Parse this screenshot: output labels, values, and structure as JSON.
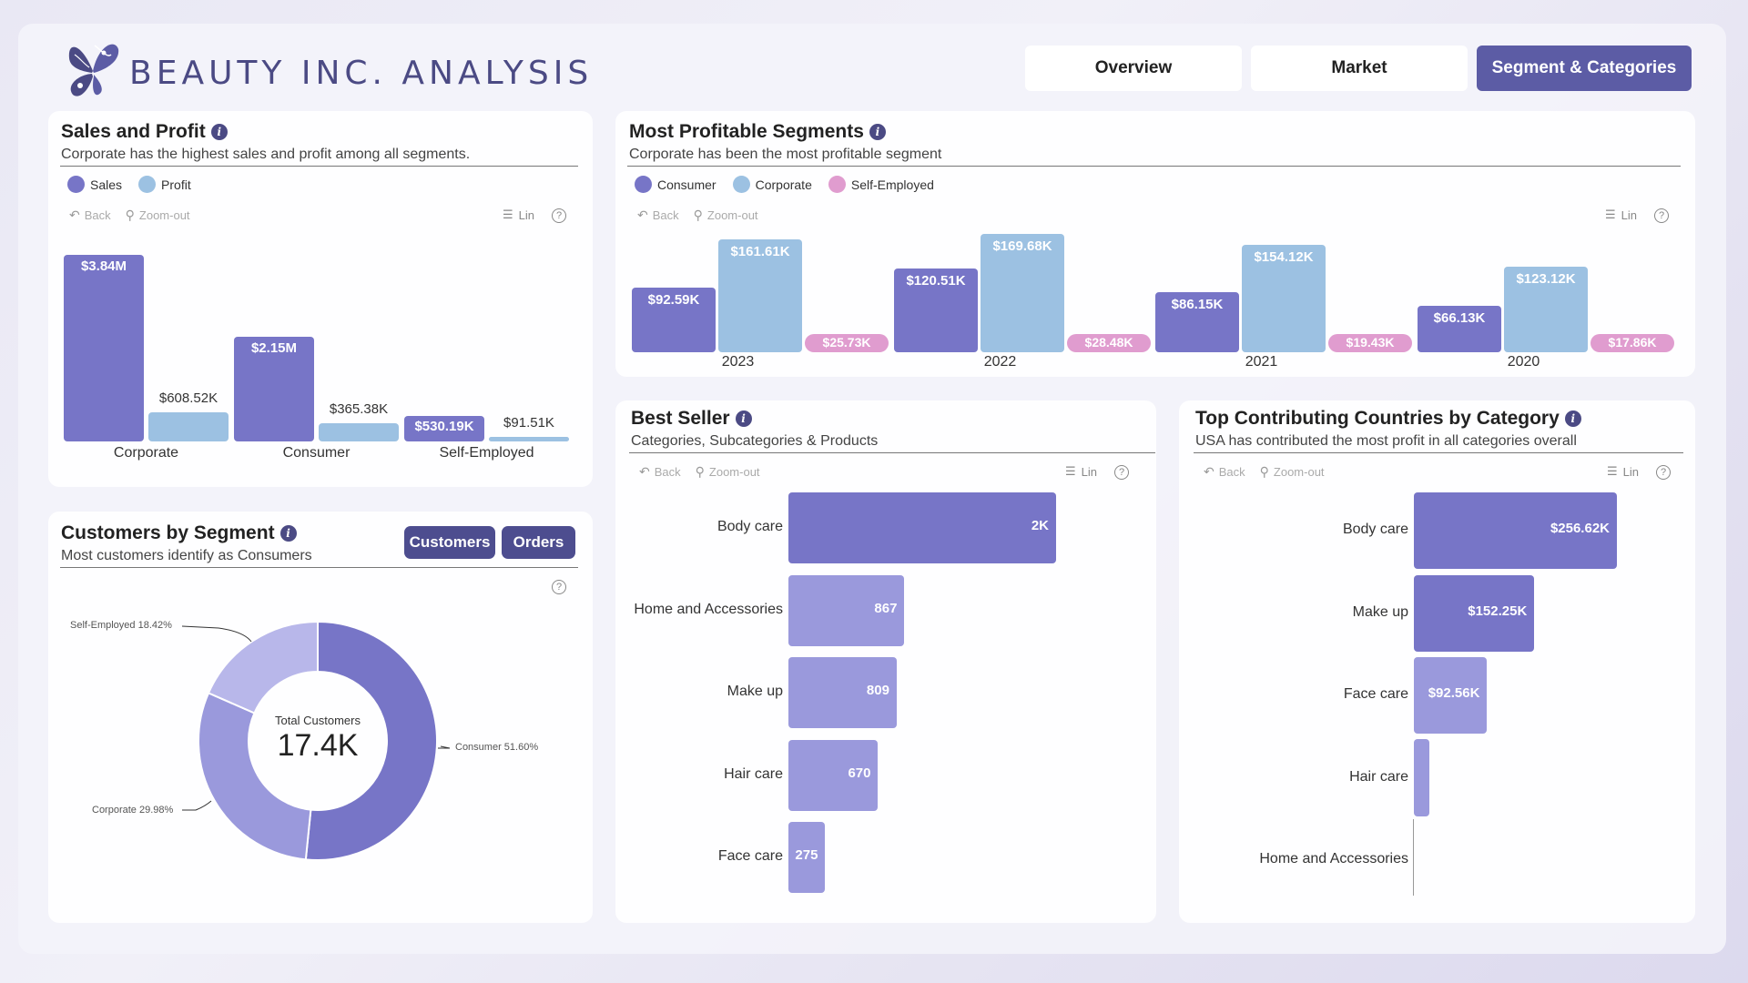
{
  "header": {
    "app_title": "BEAUTY INC. ANALYSIS",
    "tabs": [
      {
        "label": "Overview"
      },
      {
        "label": "Market"
      },
      {
        "label": "Segment & Categories"
      }
    ]
  },
  "colors": {
    "sales": "#7775c7",
    "profit": "#9cc1e2",
    "consumer": "#7775c7",
    "corporate": "#9cc1e2",
    "self_employed": "#e09ccf",
    "accent": "#4b4a84"
  },
  "toolbar": {
    "back": "Back",
    "zoom_out": "Zoom-out",
    "lin": "Lin",
    "help": "?"
  },
  "sales_profit": {
    "title": "Sales and Profit",
    "subtitle": "Corporate has the highest sales and profit among all segments.",
    "legend": [
      "Sales",
      "Profit"
    ],
    "chart_data": {
      "type": "bar",
      "categories": [
        "Corporate",
        "Consumer",
        "Self-Employed"
      ],
      "series": [
        {
          "name": "Sales",
          "values": [
            3840000,
            2150000,
            530190
          ],
          "labels": [
            "$3.84M",
            "$2.15M",
            "$530.19K"
          ]
        },
        {
          "name": "Profit",
          "values": [
            608520,
            365380,
            91510
          ],
          "labels": [
            "$608.52K",
            "$365.38K",
            "$91.51K"
          ]
        }
      ]
    }
  },
  "profitable_segments": {
    "title": "Most Profitable Segments",
    "subtitle": "Corporate has been the most profitable segment",
    "legend": [
      "Consumer",
      "Corporate",
      "Self-Employed"
    ],
    "chart_data": {
      "type": "bar",
      "categories": [
        "2023",
        "2022",
        "2021",
        "2020"
      ],
      "series": [
        {
          "name": "Consumer",
          "values": [
            92590,
            120510,
            86150,
            66130
          ],
          "labels": [
            "$92.59K",
            "$120.51K",
            "$86.15K",
            "$66.13K"
          ]
        },
        {
          "name": "Corporate",
          "values": [
            161610,
            169680,
            154120,
            123120
          ],
          "labels": [
            "$161.61K",
            "$169.68K",
            "$154.12K",
            "$123.12K"
          ]
        },
        {
          "name": "Self-Employed",
          "values": [
            25730,
            28480,
            19430,
            17860
          ],
          "labels": [
            "$25.73K",
            "$28.48K",
            "$19.43K",
            "$17.86K"
          ]
        }
      ]
    }
  },
  "customers_segment": {
    "title": "Customers by Segment",
    "subtitle": "Most customers identify as Consumers",
    "buttons": [
      "Customers",
      "Orders"
    ],
    "center_title": "Total Customers",
    "center_value": "17.4K",
    "chart_data": {
      "type": "pie",
      "slices": [
        {
          "name": "Consumer",
          "value": 51.6,
          "label": "Consumer 51.60%"
        },
        {
          "name": "Corporate",
          "value": 29.98,
          "label": "Corporate 29.98%"
        },
        {
          "name": "Self-Employed",
          "value": 18.42,
          "label": "Self-Employed 18.42%"
        }
      ],
      "colors": [
        "#7775c7",
        "#9a99dc",
        "#b8b7ea"
      ]
    }
  },
  "best_seller": {
    "title": "Best Seller",
    "subtitle": "Categories, Subcategories & Products",
    "chart_data": {
      "type": "bar",
      "orientation": "horizontal",
      "categories": [
        "Body care",
        "Home and Accessories",
        "Make up",
        "Hair care",
        "Face care"
      ],
      "values": [
        2000,
        867,
        809,
        670,
        275
      ],
      "labels": [
        "2K",
        "867",
        "809",
        "670",
        "275"
      ],
      "colors": [
        "#7775c7",
        "#9a99dc",
        "#9a99dc",
        "#9a99dc",
        "#9a99dc"
      ]
    }
  },
  "top_countries": {
    "title": "Top Contributing Countries by Category",
    "subtitle": "USA has contributed the most profit in all categories overall",
    "chart_data": {
      "type": "bar",
      "orientation": "horizontal",
      "categories": [
        "Body care",
        "Make up",
        "Face care",
        "Hair care",
        "Home and Accessories"
      ],
      "values": [
        256620,
        152250,
        92560,
        20000,
        0
      ],
      "labels": [
        "$256.62K",
        "$152.25K",
        "$92.56K",
        "",
        ""
      ],
      "colors": [
        "#7775c7",
        "#7775c7",
        "#9a99dc",
        "#9a99dc",
        "#9a99dc"
      ]
    }
  }
}
